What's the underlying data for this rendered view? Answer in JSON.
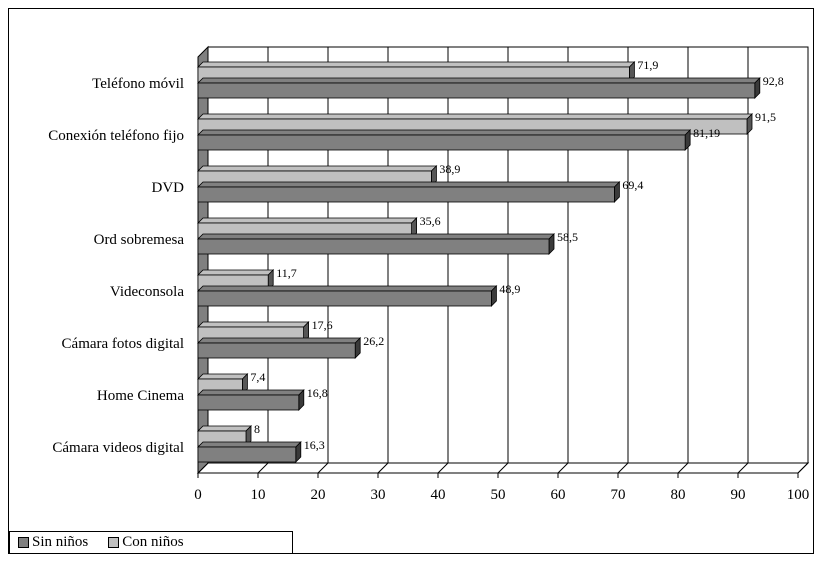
{
  "chart_data": {
    "type": "bar",
    "orientation": "horizontal",
    "categories": [
      "Teléfono móvil",
      "Conexión teléfono fijo",
      "DVD",
      "Ord sobremesa",
      "Videconsola",
      "Cámara fotos digital",
      "Home Cinema",
      "Cámara videos digital"
    ],
    "series": [
      {
        "name": "Sin niños",
        "values": [
          92.8,
          81.19,
          69.4,
          58.5,
          48.9,
          26.2,
          16.8,
          16.3
        ],
        "labels": [
          "92,8",
          "81,19",
          "69,4",
          "58,5",
          "48,9",
          "26,2",
          "16,8",
          "16,3"
        ],
        "color": "#808080"
      },
      {
        "name": "Con niños",
        "values": [
          71.9,
          91.5,
          38.9,
          35.6,
          11.7,
          17.6,
          7.4,
          8
        ],
        "labels": [
          "71,9",
          "91,5",
          "38,9",
          "35,6",
          "11,7",
          "17,6",
          "7,4",
          "8"
        ],
        "color": "#c0c0c0"
      }
    ],
    "x_ticks": [
      "0",
      "10",
      "20",
      "30",
      "40",
      "50",
      "60",
      "70",
      "80",
      "90",
      "100"
    ],
    "xlim": [
      0,
      100
    ],
    "grid": true,
    "style": "3d",
    "legend": "bottom-left"
  }
}
